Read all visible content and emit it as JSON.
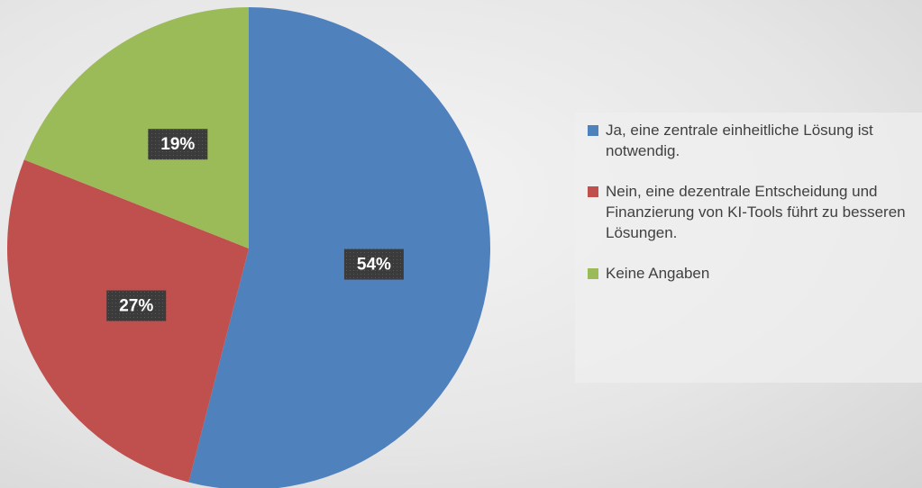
{
  "chart_data": {
    "type": "pie",
    "categories": [
      "Ja, eine zentrale einheitliche Lösung ist notwendig.",
      "Nein, eine dezentrale Entscheidung und Finanzierung von KI-Tools führt zu besseren Lösungen.",
      "Keine Angaben"
    ],
    "values": [
      54,
      27,
      19
    ],
    "value_labels": [
      "54%",
      "27%",
      "19%"
    ],
    "colors": [
      "#4f81bd",
      "#c0504d",
      "#9bbb59"
    ],
    "legend": "right"
  }
}
